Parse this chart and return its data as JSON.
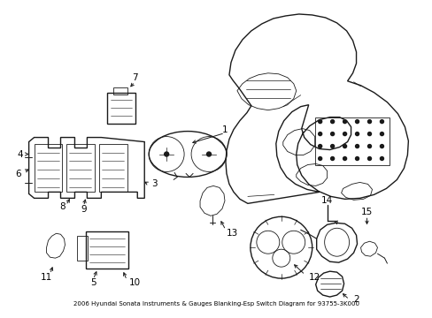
{
  "title": "2006 Hyundai Sonata Instruments & Gauges Blanking-Esp Switch Diagram for 93755-3K000",
  "bg_color": "#ffffff",
  "line_color": "#1a1a1a",
  "text_color": "#000000",
  "fig_width": 4.89,
  "fig_height": 3.6,
  "dpi": 100,
  "label_fontsize": 7.5
}
